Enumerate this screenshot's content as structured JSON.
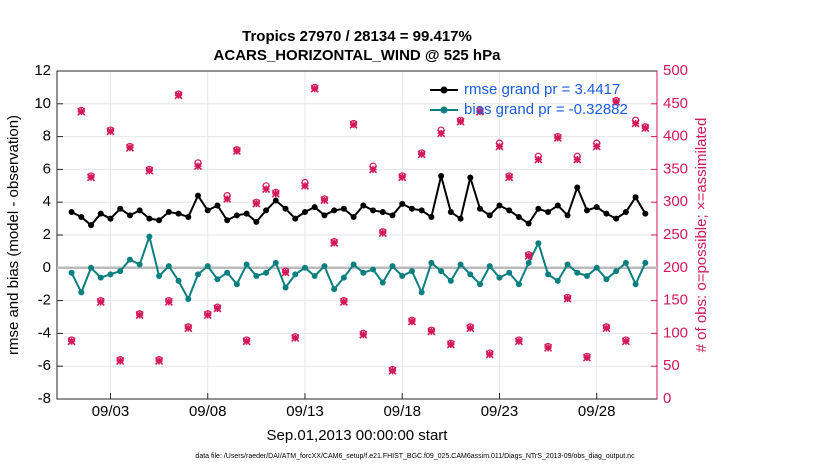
{
  "chart_data": {
    "type": "line",
    "title": "Tropics 27970 / 28134 = 99.417%",
    "subtitle": "ACARS_HORIZONTAL_WIND @ 525 hPa",
    "xlabel": "Sep.01,2013 00:00:00 start",
    "ylabel": "rmse and bias (model - observation)",
    "y2label": "# of obs: o=possible; ×=assimilated",
    "footnote": "data file: /Users/raeder/DAI/ATM_forcXX/CAM6_setup/f.e21.FHIST_BGC.f09_025.CAM6assim.011/Diags_NTrS_2013-09/obs_diag_output.nc",
    "grid": true,
    "legend": "upper right",
    "xlim": [
      0.25,
      31.1
    ],
    "xticks": [
      {
        "value": 3,
        "label": "09/03"
      },
      {
        "value": 8,
        "label": "09/08"
      },
      {
        "value": 13,
        "label": "09/13"
      },
      {
        "value": 18,
        "label": "09/18"
      },
      {
        "value": 23,
        "label": "09/23"
      },
      {
        "value": 28,
        "label": "09/28"
      }
    ],
    "ylim": [
      -8,
      12
    ],
    "yticks": [
      -8,
      -6,
      -4,
      -2,
      0,
      2,
      4,
      6,
      8,
      10,
      12
    ],
    "y2lim": [
      0,
      500
    ],
    "y2ticks": [
      0,
      50,
      100,
      150,
      200,
      250,
      300,
      350,
      400,
      450,
      500
    ],
    "x": [
      1,
      1.5,
      2,
      2.5,
      3,
      3.5,
      4,
      4.5,
      5,
      5.5,
      6,
      6.5,
      7,
      7.5,
      8,
      8.5,
      9,
      9.5,
      10,
      10.5,
      11,
      11.5,
      12,
      12.5,
      13,
      13.5,
      14,
      14.5,
      15,
      15.5,
      16,
      16.5,
      17,
      17.5,
      18,
      18.5,
      19,
      19.5,
      20,
      20.5,
      21,
      21.5,
      22,
      22.5,
      23,
      23.5,
      24,
      24.5,
      25,
      25.5,
      26,
      26.5,
      27,
      27.5,
      28,
      28.5,
      29,
      29.5,
      30,
      30.5
    ],
    "series": [
      {
        "name": "rmse grand pr = 3.4417",
        "color": "#000000",
        "axis": "y",
        "values": [
          3.4,
          3.1,
          2.6,
          3.3,
          3.0,
          3.6,
          3.2,
          3.5,
          3.0,
          2.9,
          3.4,
          3.3,
          3.1,
          4.4,
          3.5,
          3.8,
          2.9,
          3.2,
          3.3,
          2.8,
          3.5,
          4.1,
          3.6,
          3.0,
          3.4,
          3.7,
          3.2,
          3.5,
          3.6,
          3.1,
          3.8,
          3.5,
          3.4,
          3.2,
          3.9,
          3.6,
          3.5,
          3.1,
          5.6,
          3.4,
          3.0,
          5.5,
          3.6,
          3.2,
          3.8,
          3.5,
          3.1,
          2.7,
          3.6,
          3.4,
          3.8,
          3.2,
          4.9,
          3.5,
          3.7,
          3.3,
          3.0,
          3.4,
          4.3,
          3.3
        ]
      },
      {
        "name": "bias grand pr = -0.32882",
        "color": "#0a7f80",
        "axis": "y",
        "values": [
          -0.3,
          -1.5,
          0.0,
          -0.6,
          -0.4,
          -0.2,
          0.5,
          0.2,
          1.9,
          -0.5,
          0.1,
          -0.8,
          -1.9,
          -0.4,
          0.1,
          -0.7,
          -0.3,
          -1.0,
          0.2,
          -0.5,
          -0.3,
          0.3,
          -1.2,
          -0.4,
          0.0,
          -0.5,
          0.1,
          -1.3,
          -0.6,
          0.2,
          -0.3,
          -0.1,
          -0.9,
          0.1,
          -0.5,
          -0.2,
          -1.5,
          0.3,
          -0.2,
          -0.8,
          0.2,
          -0.4,
          -1.0,
          0.1,
          -0.6,
          -0.3,
          -1.0,
          0.3,
          1.5,
          -0.4,
          -0.8,
          0.2,
          -0.3,
          -0.5,
          0.0,
          -0.7,
          -0.2,
          0.3,
          -1.0,
          0.3
        ]
      },
      {
        "name": "possible",
        "color": "#d3195a",
        "axis": "y2",
        "values": [
          90,
          440,
          340,
          150,
          410,
          60,
          385,
          130,
          350,
          60,
          150,
          465,
          110,
          360,
          130,
          140,
          310,
          380,
          90,
          300,
          325,
          315,
          195,
          95,
          330,
          475,
          305,
          240,
          150,
          420,
          100,
          355,
          255,
          45,
          340,
          120,
          375,
          105,
          410,
          85,
          425,
          110,
          440,
          70,
          390,
          340,
          90,
          220,
          370,
          80,
          400,
          155,
          370,
          65,
          390,
          110,
          455,
          90,
          425,
          415
        ]
      },
      {
        "name": "assimilated",
        "color": "#d3195a",
        "axis": "y2",
        "values": [
          88,
          438,
          338,
          148,
          408,
          58,
          383,
          128,
          348,
          58,
          148,
          463,
          108,
          355,
          128,
          138,
          305,
          378,
          88,
          298,
          320,
          313,
          193,
          93,
          325,
          473,
          303,
          238,
          148,
          418,
          98,
          350,
          253,
          43,
          338,
          118,
          373,
          103,
          405,
          83,
          423,
          108,
          438,
          68,
          385,
          338,
          88,
          218,
          365,
          78,
          398,
          153,
          365,
          63,
          385,
          108,
          453,
          88,
          420,
          413
        ]
      }
    ]
  }
}
